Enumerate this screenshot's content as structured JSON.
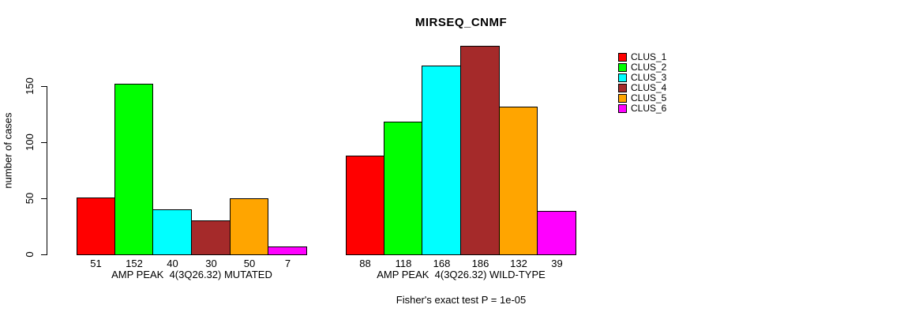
{
  "figure": {
    "title": "MIRSEQ_CNMF",
    "ylabel": "number of cases",
    "footnote": "Fisher's exact test P = 1e-05"
  },
  "chart_data": [
    {
      "type": "bar",
      "group": "mutated",
      "xlabel": "AMP PEAK  4(3Q26.32) MUTATED",
      "categories": [
        "51",
        "152",
        "40",
        "30",
        "50",
        "7"
      ],
      "values": [
        51,
        152,
        40,
        30,
        50,
        7
      ],
      "bar_colors": [
        "#FF0000",
        "#00FF00",
        "#00FFFF",
        "#A52A2A",
        "#FFA500",
        "#FF00FF"
      ],
      "ylabel": "number of cases",
      "yticks": [
        0,
        50,
        100,
        150
      ],
      "ylim": [
        0,
        190
      ],
      "grid": false
    },
    {
      "type": "bar",
      "group": "wild-type",
      "xlabel": "AMP PEAK  4(3Q26.32) WILD-TYPE",
      "categories": [
        "88",
        "118",
        "168",
        "186",
        "132",
        "39"
      ],
      "values": [
        88,
        118,
        168,
        186,
        132,
        39
      ],
      "bar_colors": [
        "#FF0000",
        "#00FF00",
        "#00FFFF",
        "#A52A2A",
        "#FFA500",
        "#FF00FF"
      ],
      "yticks": [
        0,
        50,
        100,
        150
      ],
      "ylim": [
        0,
        190
      ],
      "grid": false
    }
  ],
  "legend": {
    "position": "right",
    "items": [
      {
        "label": "CLUS_1",
        "color": "#FF0000"
      },
      {
        "label": "CLUS_2",
        "color": "#00FF00"
      },
      {
        "label": "CLUS_3",
        "color": "#00FFFF"
      },
      {
        "label": "CLUS_4",
        "color": "#A52A2A"
      },
      {
        "label": "CLUS_5",
        "color": "#FFA500"
      },
      {
        "label": "CLUS_6",
        "color": "#FF00FF"
      }
    ]
  },
  "colors": {
    "background": "#FFFFFF",
    "axis": "#000000",
    "text": "#000000"
  }
}
